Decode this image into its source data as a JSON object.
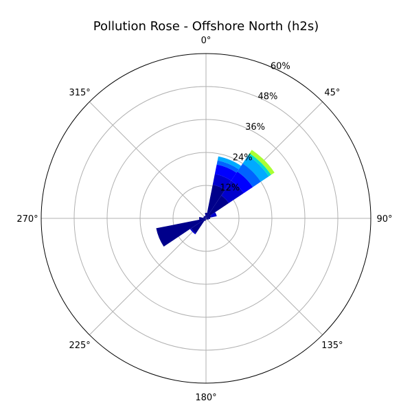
{
  "chart_data": {
    "type": "polar-stacked-bar",
    "title": "Pollution Rose - Offshore North (h2s)",
    "angle_ticks": [
      "0°",
      "45°",
      "90°",
      "135°",
      "180°",
      "225°",
      "270°",
      "315°"
    ],
    "radial_ticks": [
      "12%",
      "24%",
      "36%",
      "48%",
      "60%"
    ],
    "rmax": 60,
    "direction": "clockwise-from-north",
    "bar_width_deg": 22.5,
    "bin_colors": [
      "#00008b",
      "#0000cd",
      "#0000ff",
      "#0064ff",
      "#00aaff",
      "#00ddcc",
      "#aaff33"
    ],
    "bars": [
      {
        "direction": 0,
        "segments": [
          2.0
        ]
      },
      {
        "direction": 22.5,
        "segments": [
          12.5,
          4.0,
          3.5,
          1.5,
          1.5
        ]
      },
      {
        "direction": 45,
        "segments": [
          10.0,
          6.5,
          4.0,
          3.5,
          3.5,
          1.0,
          1.5
        ]
      },
      {
        "direction": 67.5,
        "segments": [
          2.0,
          2.0
        ]
      },
      {
        "direction": 90,
        "segments": [
          1.5
        ]
      },
      {
        "direction": 112.5,
        "segments": [
          1.0
        ]
      },
      {
        "direction": 135,
        "segments": [
          0.5
        ]
      },
      {
        "direction": 157.5,
        "segments": [
          0.5
        ]
      },
      {
        "direction": 180,
        "segments": [
          0.5
        ]
      },
      {
        "direction": 202.5,
        "segments": [
          1.0
        ]
      },
      {
        "direction": 225,
        "segments": [
          6.5,
          0.5
        ]
      },
      {
        "direction": 247.5,
        "segments": [
          18.5
        ]
      },
      {
        "direction": 270,
        "segments": [
          2.5
        ]
      },
      {
        "direction": 292.5,
        "segments": [
          1.0
        ]
      },
      {
        "direction": 315,
        "segments": [
          1.0
        ]
      },
      {
        "direction": 337.5,
        "segments": [
          1.0
        ]
      }
    ]
  }
}
